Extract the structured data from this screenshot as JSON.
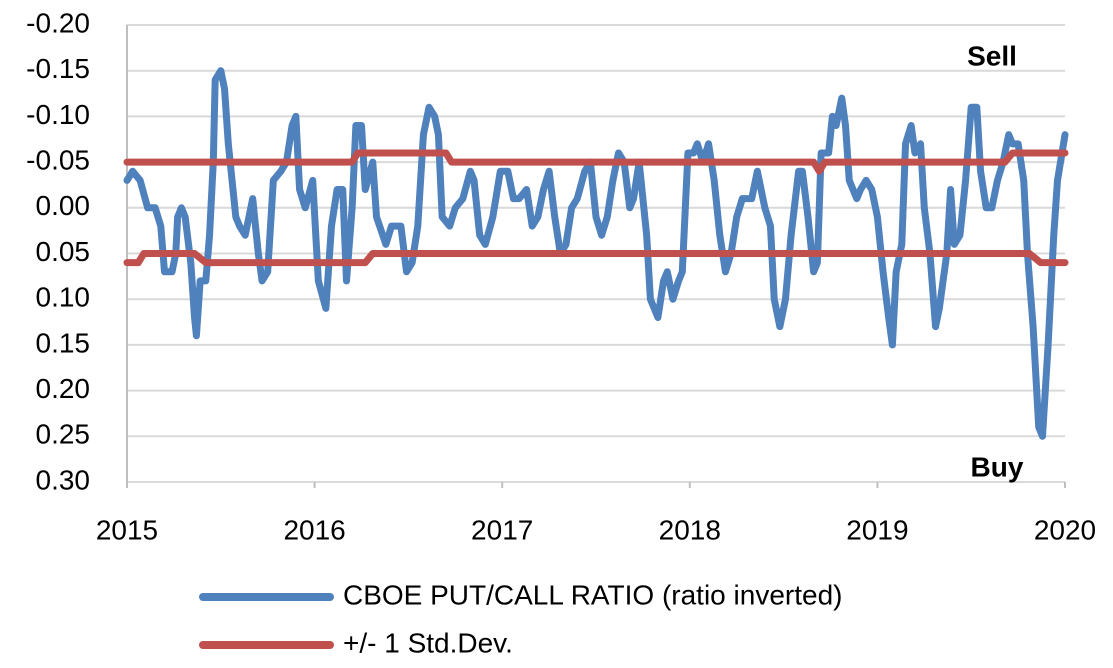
{
  "chart_data": {
    "type": "line",
    "annotations": [
      "Sell",
      "Buy"
    ],
    "xlim": [
      2015,
      2020
    ],
    "xticks": [
      2015,
      2016,
      2017,
      2018,
      2019,
      2020
    ],
    "ylim": [
      0.3,
      -0.2
    ],
    "yticks": [
      {
        "value": -0.2,
        "label": "-0.20"
      },
      {
        "value": -0.15,
        "label": "-0.15"
      },
      {
        "value": -0.1,
        "label": "-0.10"
      },
      {
        "value": -0.05,
        "label": "-0.05"
      },
      {
        "value": 0,
        "label": "0.00"
      },
      {
        "value": 0.05,
        "label": "0.05"
      },
      {
        "value": 0.1,
        "label": "0.10"
      },
      {
        "value": 0.15,
        "label": "0.15"
      },
      {
        "value": 0.2,
        "label": "0.20"
      },
      {
        "value": 0.25,
        "label": "0.25"
      },
      {
        "value": 0.3,
        "label": "0.30"
      }
    ],
    "grid": true,
    "legend": "bottom",
    "series": [
      {
        "name": "CBOE PUT/CALL RATIO (ratio inverted)",
        "color": "#4f81bd",
        "x": [
          2015.0,
          2015.03,
          2015.07,
          2015.11,
          2015.15,
          2015.18,
          2015.2,
          2015.24,
          2015.26,
          2015.27,
          2015.29,
          2015.31,
          2015.34,
          2015.36,
          2015.37,
          2015.39,
          2015.42,
          2015.44,
          2015.46,
          2015.47,
          2015.5,
          2015.52,
          2015.54,
          2015.58,
          2015.6,
          2015.63,
          2015.67,
          2015.7,
          2015.72,
          2015.75,
          2015.78,
          2015.82,
          2015.85,
          2015.88,
          2015.9,
          2015.92,
          2015.95,
          2015.99,
          2016.02,
          2016.06,
          2016.09,
          2016.12,
          2016.15,
          2016.17,
          2016.2,
          2016.22,
          2016.25,
          2016.27,
          2016.31,
          2016.33,
          2016.38,
          2016.41,
          2016.46,
          2016.49,
          2016.52,
          2016.55,
          2016.58,
          2016.61,
          2016.64,
          2016.66,
          2016.68,
          2016.72,
          2016.75,
          2016.79,
          2016.83,
          2016.85,
          2016.88,
          2016.91,
          2016.95,
          2016.99,
          2017.03,
          2017.06,
          2017.09,
          2017.13,
          2017.16,
          2017.19,
          2017.22,
          2017.25,
          2017.28,
          2017.31,
          2017.34,
          2017.37,
          2017.4,
          2017.44,
          2017.47,
          2017.5,
          2017.53,
          2017.56,
          2017.59,
          2017.62,
          2017.65,
          2017.68,
          2017.7,
          2017.73,
          2017.77,
          2017.79,
          2017.83,
          2017.86,
          2017.88,
          2017.91,
          2017.94,
          2017.96,
          2017.99,
          2018.02,
          2018.04,
          2018.07,
          2018.1,
          2018.13,
          2018.16,
          2018.19,
          2018.22,
          2018.25,
          2018.28,
          2018.31,
          2018.33,
          2018.36,
          2018.4,
          2018.43,
          2018.45,
          2018.48,
          2018.51,
          2018.54,
          2018.58,
          2018.6,
          2018.63,
          2018.66,
          2018.68,
          2018.7,
          2018.74,
          2018.76,
          2018.78,
          2018.81,
          2018.83,
          2018.85,
          2018.89,
          2018.91,
          2018.94,
          2018.97,
          2019.0,
          2019.03,
          2019.06,
          2019.08,
          2019.1,
          2019.13,
          2019.15,
          2019.18,
          2019.2,
          2019.23,
          2019.25,
          2019.28,
          2019.31,
          2019.33,
          2019.37,
          2019.39,
          2019.41,
          2019.44,
          2019.47,
          2019.5,
          2019.53,
          2019.55,
          2019.58,
          2019.61,
          2019.64,
          2019.67,
          2019.7,
          2019.72,
          2019.75,
          2019.78,
          2019.8,
          2019.83,
          2019.86,
          2019.88,
          2019.91,
          2019.94,
          2019.96,
          2020.0
        ],
        "values": [
          -0.03,
          -0.04,
          -0.03,
          0.0,
          0.0,
          0.02,
          0.07,
          0.07,
          0.05,
          0.01,
          0.0,
          0.01,
          0.06,
          0.12,
          0.14,
          0.08,
          0.08,
          0.03,
          -0.05,
          -0.14,
          -0.15,
          -0.13,
          -0.07,
          0.01,
          0.02,
          0.03,
          -0.01,
          0.05,
          0.08,
          0.07,
          -0.03,
          -0.04,
          -0.05,
          -0.09,
          -0.1,
          -0.02,
          0.0,
          -0.03,
          0.08,
          0.11,
          0.02,
          -0.02,
          -0.02,
          0.08,
          0.0,
          -0.09,
          -0.09,
          -0.02,
          -0.05,
          0.01,
          0.04,
          0.02,
          0.02,
          0.07,
          0.06,
          0.02,
          -0.08,
          -0.11,
          -0.1,
          -0.08,
          0.01,
          0.02,
          0.0,
          -0.01,
          -0.04,
          -0.03,
          0.03,
          0.04,
          0.01,
          -0.04,
          -0.04,
          -0.01,
          -0.01,
          -0.02,
          0.02,
          0.01,
          -0.02,
          -0.04,
          0.01,
          0.05,
          0.04,
          0.0,
          -0.01,
          -0.04,
          -0.05,
          0.01,
          0.03,
          0.01,
          -0.03,
          -0.06,
          -0.05,
          0.0,
          -0.01,
          -0.05,
          0.03,
          0.1,
          0.12,
          0.08,
          0.07,
          0.1,
          0.08,
          0.07,
          -0.06,
          -0.06,
          -0.07,
          -0.05,
          -0.07,
          -0.03,
          0.03,
          0.07,
          0.05,
          0.01,
          -0.01,
          -0.01,
          -0.01,
          -0.04,
          0.0,
          0.02,
          0.1,
          0.13,
          0.1,
          0.03,
          -0.04,
          -0.04,
          0.01,
          0.07,
          0.06,
          -0.06,
          -0.06,
          -0.1,
          -0.09,
          -0.12,
          -0.09,
          -0.03,
          -0.01,
          -0.02,
          -0.03,
          -0.02,
          0.01,
          0.07,
          0.12,
          0.15,
          0.07,
          0.04,
          -0.07,
          -0.09,
          -0.06,
          -0.07,
          0.0,
          0.05,
          0.13,
          0.11,
          0.05,
          -0.02,
          0.04,
          0.03,
          -0.03,
          -0.11,
          -0.11,
          -0.04,
          0.0,
          0.0,
          -0.03,
          -0.05,
          -0.08,
          -0.07,
          -0.07,
          -0.03,
          0.05,
          0.13,
          0.24,
          0.25,
          0.15,
          0.03,
          -0.03,
          -0.08
        ]
      },
      {
        "name": "+/- 1 Std.Dev.",
        "color": "#c0504d",
        "bands": [
          {
            "x": [
              2015,
              2016.2,
              2016.23,
              2016.7,
              2016.73,
              2018.66,
              2018.69,
              2018.72,
              2019.68,
              2019.72,
              2020
            ],
            "values": [
              -0.05,
              -0.05,
              -0.06,
              -0.06,
              -0.05,
              -0.05,
              -0.04,
              -0.05,
              -0.05,
              -0.06,
              -0.06
            ]
          },
          {
            "x": [
              2015,
              2015.06,
              2015.09,
              2015.36,
              2015.42,
              2016.27,
              2016.31,
              2019.81,
              2019.87,
              2020
            ],
            "values": [
              0.06,
              0.06,
              0.05,
              0.05,
              0.06,
              0.06,
              0.05,
              0.05,
              0.06,
              0.06
            ]
          }
        ]
      }
    ]
  }
}
